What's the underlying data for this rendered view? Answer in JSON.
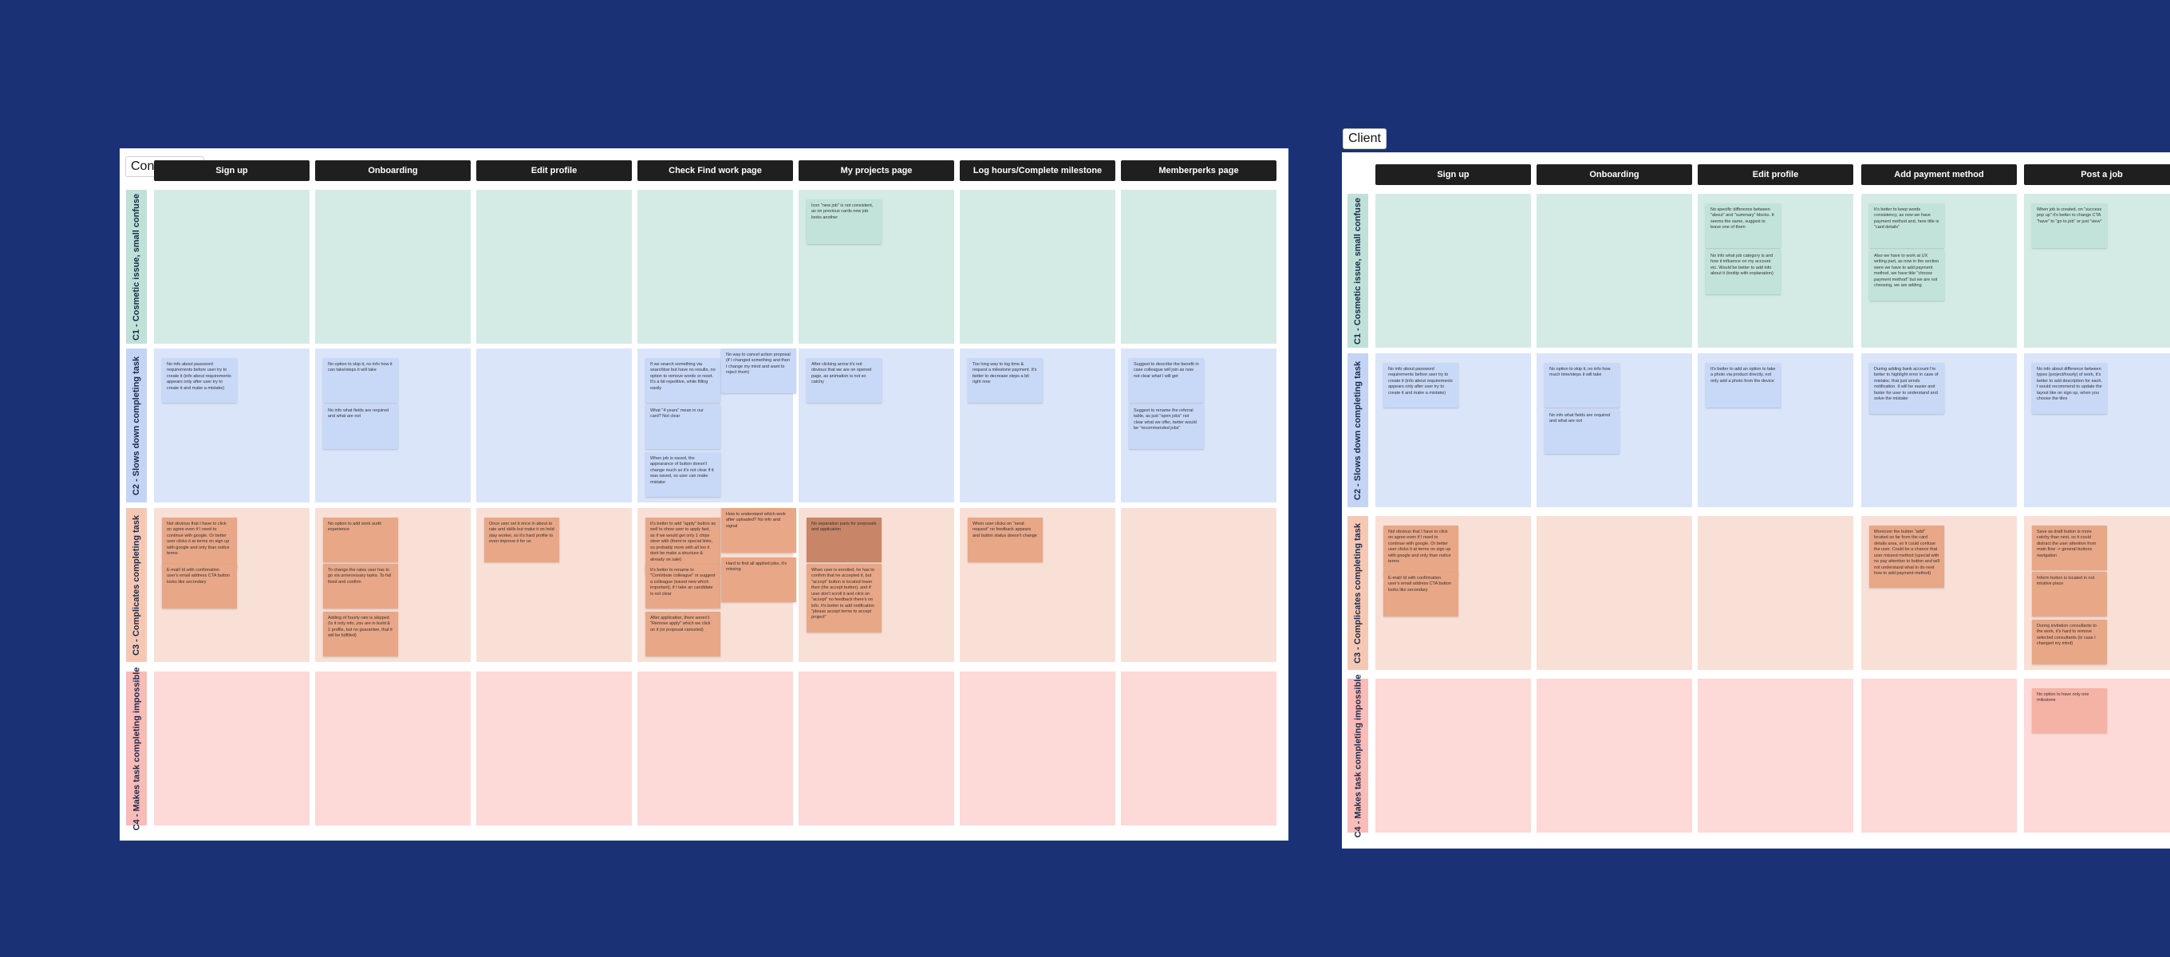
{
  "consultants": {
    "title": "Consultants",
    "columns": [
      "Sign up",
      "Onboarding",
      "Edit profile",
      "Check Find work page",
      "My projects page",
      "Log hours/Complete milestone",
      "Memberperks page"
    ],
    "rows": [
      "C1 - Cosmetic issue, small confuse",
      "C2 - Slows down completing task",
      "C3 - Complicates completing task",
      "C4 - Makes task completing  impossible"
    ],
    "notes": [
      {
        "row": 0,
        "col": 4,
        "slot": 0,
        "text": "Icon \"new job\" is not consistent, as on previous cards new job looks another"
      },
      {
        "row": 1,
        "col": 0,
        "slot": 0,
        "text": "No info about password requirements before user try to create it (info about requirements appears only after user try to create it and make a mistake)"
      },
      {
        "row": 1,
        "col": 1,
        "slot": 0,
        "text": "No option to skip it, no info how it can take/steps it will take"
      },
      {
        "row": 1,
        "col": 1,
        "slot": 1,
        "text": "No info what fields are required and what are not"
      },
      {
        "row": 1,
        "col": 3,
        "slot": 0,
        "text": "If we search something via searchbar but have no results, no option to remove words or reset. It's a bit repetitive, while filling easily"
      },
      {
        "row": 1,
        "col": 3,
        "slot": 1,
        "text": "What \"4 years\" mean in our card? Not clear"
      },
      {
        "row": 1,
        "col": 3,
        "slot": 2,
        "text": "When job is saved, the appearance of button doesn't change much so it's not clear if it was saved, so user can make mistake"
      },
      {
        "row": 1,
        "col": 3,
        "slot": 3,
        "text": "No way to cancel action proposal (if I changed something and then I change my mind and want to reject them)"
      },
      {
        "row": 1,
        "col": 4,
        "slot": 0,
        "text": "After clicking arrow it's not obvious that we are on opened page, as animation is not so catchy"
      },
      {
        "row": 1,
        "col": 5,
        "slot": 0,
        "text": "Too long way to log time & request a milestone payment. It's better to decrease steps a bit right now"
      },
      {
        "row": 1,
        "col": 6,
        "slot": 0,
        "text": "Suggest to describe the benefit in case colleague will join as now not clear what I will get"
      },
      {
        "row": 1,
        "col": 6,
        "slot": 1,
        "text": "Suggest to rename the referral table, as just \"open jobs\" not clear what we offer, better would be \"recommended jobs\""
      },
      {
        "row": 2,
        "col": 0,
        "slot": 0,
        "text": "Not obvious that I have to click on agree even if I need to continue with google. Or better user clicks it at terms on sign up with google and only than notice terms"
      },
      {
        "row": 2,
        "col": 0,
        "slot": 1,
        "text": "E-mail/ Id with confirmation user's email address CTA button looks like secondary"
      },
      {
        "row": 2,
        "col": 1,
        "slot": 0,
        "text": "No option to add work audit experience"
      },
      {
        "row": 2,
        "col": 1,
        "slot": 1,
        "text": "To change the rates user has to go via unnecessary tasks. To fail fixed and confirm"
      },
      {
        "row": 2,
        "col": 1,
        "slot": 2,
        "text": "Adding of hourly rate is skipped (Is it only info, you are in build & 1 profile, but no guarantee, that it will be fulfilled)"
      },
      {
        "row": 2,
        "col": 2,
        "slot": 0,
        "text": "Once user set it once in about to rate and skills but make it on hold stay worker, so it's hard profile to even improve it for us"
      },
      {
        "row": 2,
        "col": 3,
        "slot": 0,
        "text": "It's better to add \"apply\" button as well to show user to apply fast, as if we would get only 1 chips steer with (there're special links, so probably more with all too it dont be make a structure & already on sale)"
      },
      {
        "row": 2,
        "col": 3,
        "slot": 1,
        "text": "It's better to rename to \"Contribute colleague\" or suggest a colleague (saved new which important), if I take an candidate is not clear"
      },
      {
        "row": 2,
        "col": 3,
        "slot": 2,
        "text": "After application, there weren't \"Remove apply\" which we click on it (or proposal canceled)"
      },
      {
        "row": 2,
        "col": 3,
        "slot": 3,
        "text": "How to understand which work after uploaded? No info and signal"
      },
      {
        "row": 2,
        "col": 3,
        "slot": 4,
        "text": "Hard to find all applied jobs, it's missing"
      },
      {
        "row": 2,
        "col": 4,
        "slot": 0,
        "text": "No separation parts for proposals and application",
        "dark": true
      },
      {
        "row": 2,
        "col": 4,
        "slot": 1,
        "text": "When user is enrolled, he has to confirm that he accepted it, but \"accept\" button is located lower then (the accept button), and if user don't scroll it and click on \"accept\" no feedback there's no info. It's better to add notification \"please accept terms to accept project\""
      },
      {
        "row": 2,
        "col": 5,
        "slot": 0,
        "text": "When user clicks on \"send request\" no feedback appears and button status doesn't change"
      }
    ]
  },
  "client": {
    "title": "Client",
    "columns": [
      "Sign up",
      "Onboarding",
      "Edit profile",
      "Add payment method",
      "Post a job"
    ],
    "rows": [
      "C1 - Cosmetic issue, small confuse",
      "C2 - Slows down completing task",
      "C3 - Complicates completing task",
      "C4 - Makes task completing  impossible"
    ],
    "notes": [
      {
        "row": 0,
        "col": 2,
        "slot": 0,
        "text": "No specific difference between \"about\" and \"summary\" blocks. It seems the same, suggest to leave one of them"
      },
      {
        "row": 0,
        "col": 2,
        "slot": 1,
        "text": "No info what job category is and how it influence on my account etc. Would be better to add info about it (tooltip with explanation)"
      },
      {
        "row": 0,
        "col": 3,
        "slot": 0,
        "text": "It's better to keep words consistency, as now we have payment method and, here title is \"card details\""
      },
      {
        "row": 0,
        "col": 3,
        "slot": 1,
        "text": "Also we have to work at UX writing part, as now in the section were we have to add payment method, we have title \"choose payment method\" but we are not choosing, we are adding"
      },
      {
        "row": 0,
        "col": 4,
        "slot": 0,
        "text": "When job is created, on \"success pop up\" it's better to change CTA \"have\" to \"go to job\" or just \"view\""
      },
      {
        "row": 1,
        "col": 0,
        "slot": 0,
        "text": "No info about password requirements before user try to create it (info about requirements appears only after user try to create it and make a mistake)"
      },
      {
        "row": 1,
        "col": 1,
        "slot": 0,
        "text": "No option to skip it, no info how much time/steps it will take"
      },
      {
        "row": 1,
        "col": 1,
        "slot": 1,
        "text": "No info what fields are required and what are not"
      },
      {
        "row": 1,
        "col": 2,
        "slot": 0,
        "text": "It's better to add an option to take a photo via product directly, not only add a photo from the device"
      },
      {
        "row": 1,
        "col": 3,
        "slot": 0,
        "text": "During adding bank account I'm better to highlight error in case of mistake, that just sends notification. It will be easier and faster for user to understand and solve the mistake"
      },
      {
        "row": 1,
        "col": 4,
        "slot": 0,
        "text": "No info about difference between types (project/hourly) of work, it's better to add description for each. I would recommend to update the layout like on sign up, when you choose the tiles"
      },
      {
        "row": 2,
        "col": 0,
        "slot": 0,
        "text": "Not obvious that I have to click on agree even if I need to continue with google. Or better user clicks it at terms on sign up with google and only than notice terms"
      },
      {
        "row": 2,
        "col": 0,
        "slot": 1,
        "text": "E-mail/ Id with confirmation user's email address CTA button looks like secondary"
      },
      {
        "row": 2,
        "col": 3,
        "slot": 0,
        "text": "Moreover the button \"add\" located so far from the card details area, so it could confuse the user. Could be a chance that user missed method (special with no pay attention to button and will not understand what to do next how to add payment method)"
      },
      {
        "row": 2,
        "col": 4,
        "slot": 0,
        "text": "Save as draft button is more catchy than next, so it could distract the user attention from main flow -> general buttons navigation"
      },
      {
        "row": 2,
        "col": 4,
        "slot": 1,
        "text": "Inform button is located in not intuitive place"
      },
      {
        "row": 2,
        "col": 4,
        "slot": 2,
        "text": "During invitation consultants to the work, it's hard to remove selected consultants (in case I changed my mind)"
      },
      {
        "row": 3,
        "col": 4,
        "slot": 0,
        "text": "No option to have only one milestone"
      }
    ]
  },
  "colors": {
    "background": "#1a3275",
    "row_c1": "#d4ebe5",
    "row_c2": "#dae5f9",
    "row_c3": "#f9e0d6",
    "row_c4": "#fdd9d7",
    "header": "#1f1f1f"
  }
}
